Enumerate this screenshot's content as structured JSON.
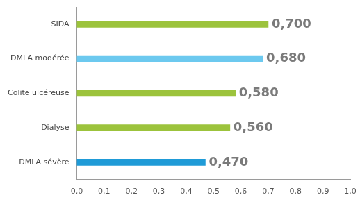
{
  "chart_data": {
    "type": "bar",
    "orientation": "horizontal",
    "categories": [
      "SIDA",
      "DMLA modérée",
      "Colite ulcéreuse",
      "Dialyse",
      "DMLA sévère"
    ],
    "values": [
      0.7,
      0.68,
      0.58,
      0.56,
      0.47
    ],
    "value_labels": [
      "0,700",
      "0,680",
      "0,580",
      "0,560",
      "0,470"
    ],
    "colors": [
      "#9cc33c",
      "#6cc9ef",
      "#9cc33c",
      "#9cc33c",
      "#1f9bd7"
    ],
    "xlim": [
      0,
      1
    ],
    "xticks": [
      {
        "value": 0,
        "label": "0,0"
      },
      {
        "value": 0.1,
        "label": "0,1"
      },
      {
        "value": 0.2,
        "label": "0,2"
      },
      {
        "value": 0.3,
        "label": "0,3"
      },
      {
        "value": 0.4,
        "label": "0,4"
      },
      {
        "value": 0.5,
        "label": "0,5"
      },
      {
        "value": 0.6,
        "label": "0,6"
      },
      {
        "value": 0.7,
        "label": "0,7"
      },
      {
        "value": 0.8,
        "label": "0,8"
      },
      {
        "value": 0.9,
        "label": "0,9"
      },
      {
        "value": 1,
        "label": "1,0"
      }
    ],
    "grid": false,
    "data_labels": true
  }
}
